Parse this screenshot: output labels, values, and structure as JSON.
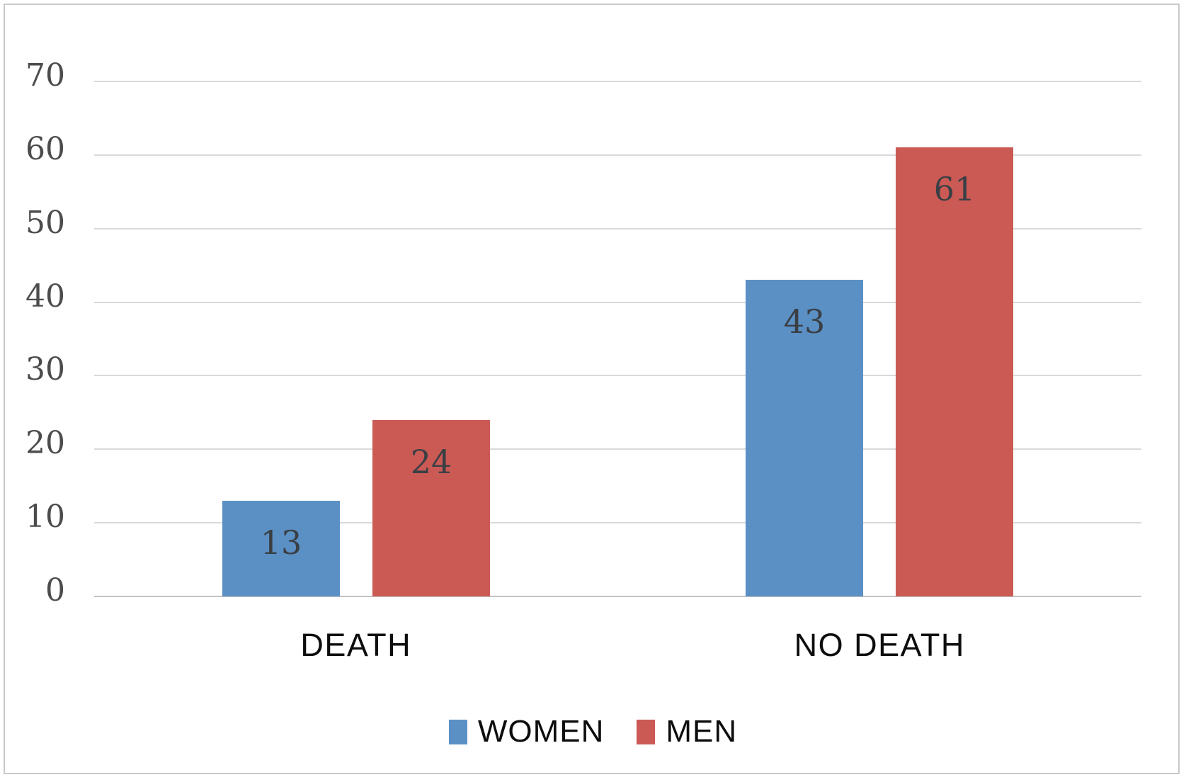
{
  "chart_data": {
    "type": "bar",
    "categories": [
      "DEATH",
      "NO DEATH"
    ],
    "series": [
      {
        "name": "WOMEN",
        "color": "#5b90c5",
        "values": [
          13,
          43
        ]
      },
      {
        "name": "MEN",
        "color": "#cb5a55",
        "values": [
          24,
          61
        ]
      }
    ],
    "title": "",
    "xlabel": "",
    "ylabel": "",
    "ylim": [
      0,
      70
    ],
    "yticks": [
      0,
      10,
      20,
      30,
      40,
      50,
      60,
      70
    ],
    "grid": true,
    "legend_position": "bottom",
    "data_labels": "inside-end"
  },
  "colors": {
    "gridline": "#d9d9d9",
    "axis_line": "#c3c3c3",
    "tick_label": "#4c4c4c",
    "data_label": "#3a3f44",
    "category_label": "#0d0d0d",
    "frame_border": "#c9c9c9",
    "background": "#ffffff",
    "series_women": "#5b90c5",
    "series_men": "#cb5a55"
  }
}
